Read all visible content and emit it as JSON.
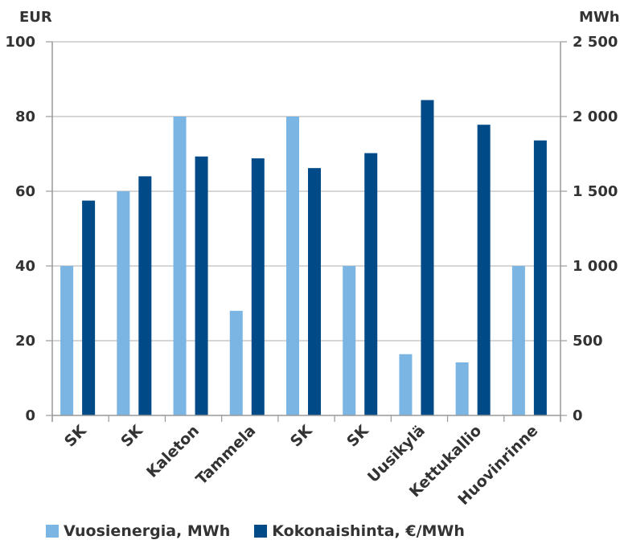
{
  "chart_data": {
    "type": "bar",
    "y_left_label": "EUR",
    "y_right_label": "MWh",
    "categories": [
      "SK",
      "SK",
      "Kaleton",
      "Tammela",
      "SK",
      "SK",
      "Uusikylä",
      "Kettukallio",
      "Huovinrinne"
    ],
    "y_left_ticks": [
      "0",
      "20",
      "40",
      "60",
      "80",
      "100"
    ],
    "y_right_ticks": [
      "0",
      "500",
      "1 000",
      "1 500",
      "2 000",
      "2 500"
    ],
    "ylim_left": [
      0,
      100
    ],
    "ylim_right": [
      0,
      2500
    ],
    "grid": true,
    "legend_position": "bottom-left",
    "series": [
      {
        "name": "Vuosienergia, MWh",
        "axis": "right",
        "color": "#7ab5e3",
        "values": [
          1000,
          1500,
          2000,
          700,
          2000,
          1000,
          410,
          355,
          1000
        ]
      },
      {
        "name": "Kokonaishinta, €/MWh",
        "axis": "left",
        "color": "#004a87",
        "values": [
          57.5,
          64,
          69.3,
          68.8,
          66.2,
          70.2,
          84.4,
          77.8,
          73.6
        ]
      }
    ]
  }
}
